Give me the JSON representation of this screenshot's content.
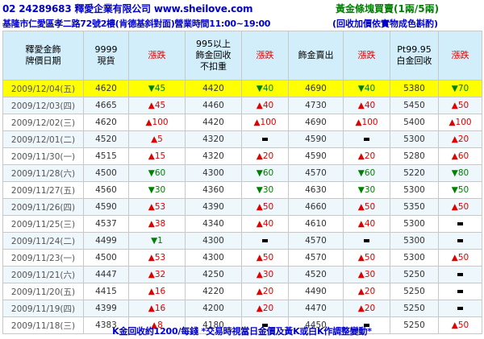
{
  "header": {
    "phone_company": "02 24289683  釋愛企業有限公司  www.sheilove.com",
    "gold_bar_title": "黃金條塊買賣(1兩/5兩)",
    "address_hours": "基隆市仁愛區孝二路72號2樓(肯德基斜對面)營業時間11:00~19:00",
    "gold_bar_note": "(回收加價依實物成色斟酌)"
  },
  "columns": [
    {
      "label": "釋愛金飾\n牌價日期"
    },
    {
      "label": "9999\n現貨"
    },
    {
      "label": "漲跌"
    },
    {
      "label": "995以上\n飾金回收\n不扣重"
    },
    {
      "label": "漲跌"
    },
    {
      "label": "飾金賣出"
    },
    {
      "label": "漲跌"
    },
    {
      "label": "Pt99.95\n白金回收"
    },
    {
      "label": "漲跌"
    }
  ],
  "rows": [
    {
      "date": "2009/12/04(五)",
      "spot": "4620",
      "spot_chg": "▼45",
      "recycle": "4420",
      "recycle_chg": "▼40",
      "sell": "4690",
      "sell_chg": "▼40",
      "pt": "5380",
      "pt_chg": "▼70"
    },
    {
      "date": "2009/12/03(四)",
      "spot": "4665",
      "spot_chg": "▲45",
      "recycle": "4460",
      "recycle_chg": "▲40",
      "sell": "4730",
      "sell_chg": "▲40",
      "pt": "5450",
      "pt_chg": "▲50"
    },
    {
      "date": "2009/12/02(三)",
      "spot": "4620",
      "spot_chg": "▲100",
      "recycle": "4420",
      "recycle_chg": "▲100",
      "sell": "4690",
      "sell_chg": "▲100",
      "pt": "5400",
      "pt_chg": "▲100"
    },
    {
      "date": "2009/12/01(二)",
      "spot": "4520",
      "spot_chg": "▲5",
      "recycle": "4320",
      "recycle_chg": "",
      "sell": "4590",
      "sell_chg": "",
      "pt": "5300",
      "pt_chg": "▲20"
    },
    {
      "date": "2009/11/30(一)",
      "spot": "4515",
      "spot_chg": "▲15",
      "recycle": "4320",
      "recycle_chg": "▲20",
      "sell": "4590",
      "sell_chg": "▲20",
      "pt": "5280",
      "pt_chg": "▲60"
    },
    {
      "date": "2009/11/28(六)",
      "spot": "4500",
      "spot_chg": "▼60",
      "recycle": "4300",
      "recycle_chg": "▼60",
      "sell": "4570",
      "sell_chg": "▼60",
      "pt": "5220",
      "pt_chg": "▼80"
    },
    {
      "date": "2009/11/27(五)",
      "spot": "4560",
      "spot_chg": "▼30",
      "recycle": "4360",
      "recycle_chg": "▼30",
      "sell": "4630",
      "sell_chg": "▼30",
      "pt": "5300",
      "pt_chg": "▼50"
    },
    {
      "date": "2009/11/26(四)",
      "spot": "4590",
      "spot_chg": "▲53",
      "recycle": "4390",
      "recycle_chg": "▲50",
      "sell": "4660",
      "sell_chg": "▲50",
      "pt": "5350",
      "pt_chg": "▲50"
    },
    {
      "date": "2009/11/25(三)",
      "spot": "4537",
      "spot_chg": "▲38",
      "recycle": "4340",
      "recycle_chg": "▲40",
      "sell": "4610",
      "sell_chg": "▲40",
      "pt": "5300",
      "pt_chg": ""
    },
    {
      "date": "2009/11/24(二)",
      "spot": "4499",
      "spot_chg": "▼1",
      "recycle": "4300",
      "recycle_chg": "",
      "sell": "4570",
      "sell_chg": "",
      "pt": "5300",
      "pt_chg": ""
    },
    {
      "date": "2009/11/23(一)",
      "spot": "4500",
      "spot_chg": "▲53",
      "recycle": "4300",
      "recycle_chg": "▲50",
      "sell": "4570",
      "sell_chg": "▲50",
      "pt": "5300",
      "pt_chg": "▲50"
    },
    {
      "date": "2009/11/21(六)",
      "spot": "4447",
      "spot_chg": "▲32",
      "recycle": "4250",
      "recycle_chg": "▲30",
      "sell": "4520",
      "sell_chg": "▲30",
      "pt": "5250",
      "pt_chg": ""
    },
    {
      "date": "2009/11/20(五)",
      "spot": "4415",
      "spot_chg": "▲16",
      "recycle": "4220",
      "recycle_chg": "▲20",
      "sell": "4490",
      "sell_chg": "▲20",
      "pt": "5250",
      "pt_chg": ""
    },
    {
      "date": "2009/11/19(四)",
      "spot": "4399",
      "spot_chg": "▲16",
      "recycle": "4200",
      "recycle_chg": "▲20",
      "sell": "4470",
      "sell_chg": "▲20",
      "pt": "5250",
      "pt_chg": ""
    },
    {
      "date": "2009/11/18(三)",
      "spot": "4383",
      "spot_chg": "▲8",
      "recycle": "4180",
      "recycle_chg": "",
      "sell": "4450",
      "sell_chg": "",
      "pt": "5250",
      "pt_chg": "▲50"
    }
  ],
  "footer": "K金回收約1200/每錢 *交易時視當日金價及黃K或白K作調整變動*"
}
